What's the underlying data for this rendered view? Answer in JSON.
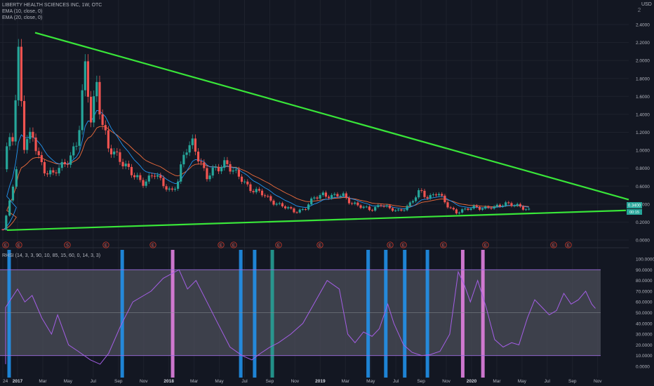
{
  "header": {
    "line1": "LIBERTY HEALTH SCIENCES INC, 1W, OTC",
    "line2": "EMA (10, close, 0)",
    "line3": "EMA (20, close, 0)",
    "currency": "USD",
    "scale_button": "2"
  },
  "indicator_label": "RHSI (14, 3, 3, 90, 10, 85, 15, 60, 0, 14, 3, 3)",
  "colors": {
    "background": "#131722",
    "up": "#26a69a",
    "down": "#ef5350",
    "trendline": "#39e639",
    "ema10": "#2196f3",
    "ema20": "#ef6c3c",
    "osc": "#a45ee5",
    "band_fill": "#4c4f5a",
    "marker_blue": "#2196f3",
    "marker_pink": "#e07fdf",
    "marker_teal": "#26a69a"
  },
  "chart_data": [
    {
      "type": "candlestick",
      "title": "LIBERTY HEALTH SCIENCES INC, 1W, OTC",
      "y_ticks": [
        "2.4000",
        "2.2000",
        "2.0000",
        "1.8000",
        "1.6000",
        "1.4000",
        "1.2000",
        "1.0000",
        "0.8000",
        "0.6000",
        "0.4000",
        "0.2000",
        "0.0000"
      ],
      "ylim": [
        0,
        2.4
      ],
      "x_ticks": [
        "24",
        "2017",
        "Mar",
        "May",
        "Jul",
        "Sep",
        "Nov",
        "2018",
        "Mar",
        "May",
        "Jul",
        "Sep",
        "Nov",
        "2019",
        "Mar",
        "May",
        "Jul",
        "Sep",
        "Nov",
        "2020",
        "Mar",
        "May",
        "Jul",
        "Sep",
        "Nov"
      ],
      "price_labels": [
        "0.3400",
        "00:15"
      ],
      "series": [
        {
          "name": "EMA (10, close, 0)"
        },
        {
          "name": "EMA (20, close, 0)"
        }
      ],
      "trendlines": [
        {
          "from": [
            "2017-01",
            2.31
          ],
          "to": [
            "2020-11",
            0.45
          ]
        },
        {
          "from": [
            "2016-12",
            0.11
          ],
          "to": [
            "2020-11",
            0.33
          ]
        }
      ],
      "event_markers": [
        "E",
        "E",
        "S",
        "E",
        "E",
        "E",
        "E",
        "E",
        "E",
        "E",
        "E",
        "E",
        "E",
        "E",
        "E"
      ]
    },
    {
      "type": "line",
      "title": "RHSI (14, 3, 3, 90, 10, 85, 15, 60, 0, 14, 3, 3)",
      "y_ticks": [
        "100.0000",
        "90.0000",
        "80.0000",
        "70.0000",
        "60.0000",
        "50.0000",
        "40.0000",
        "30.0000",
        "20.0000",
        "10.0000",
        "0.0000"
      ],
      "ylim": [
        0,
        100
      ],
      "band": [
        10,
        90
      ],
      "midline": 50
    }
  ]
}
